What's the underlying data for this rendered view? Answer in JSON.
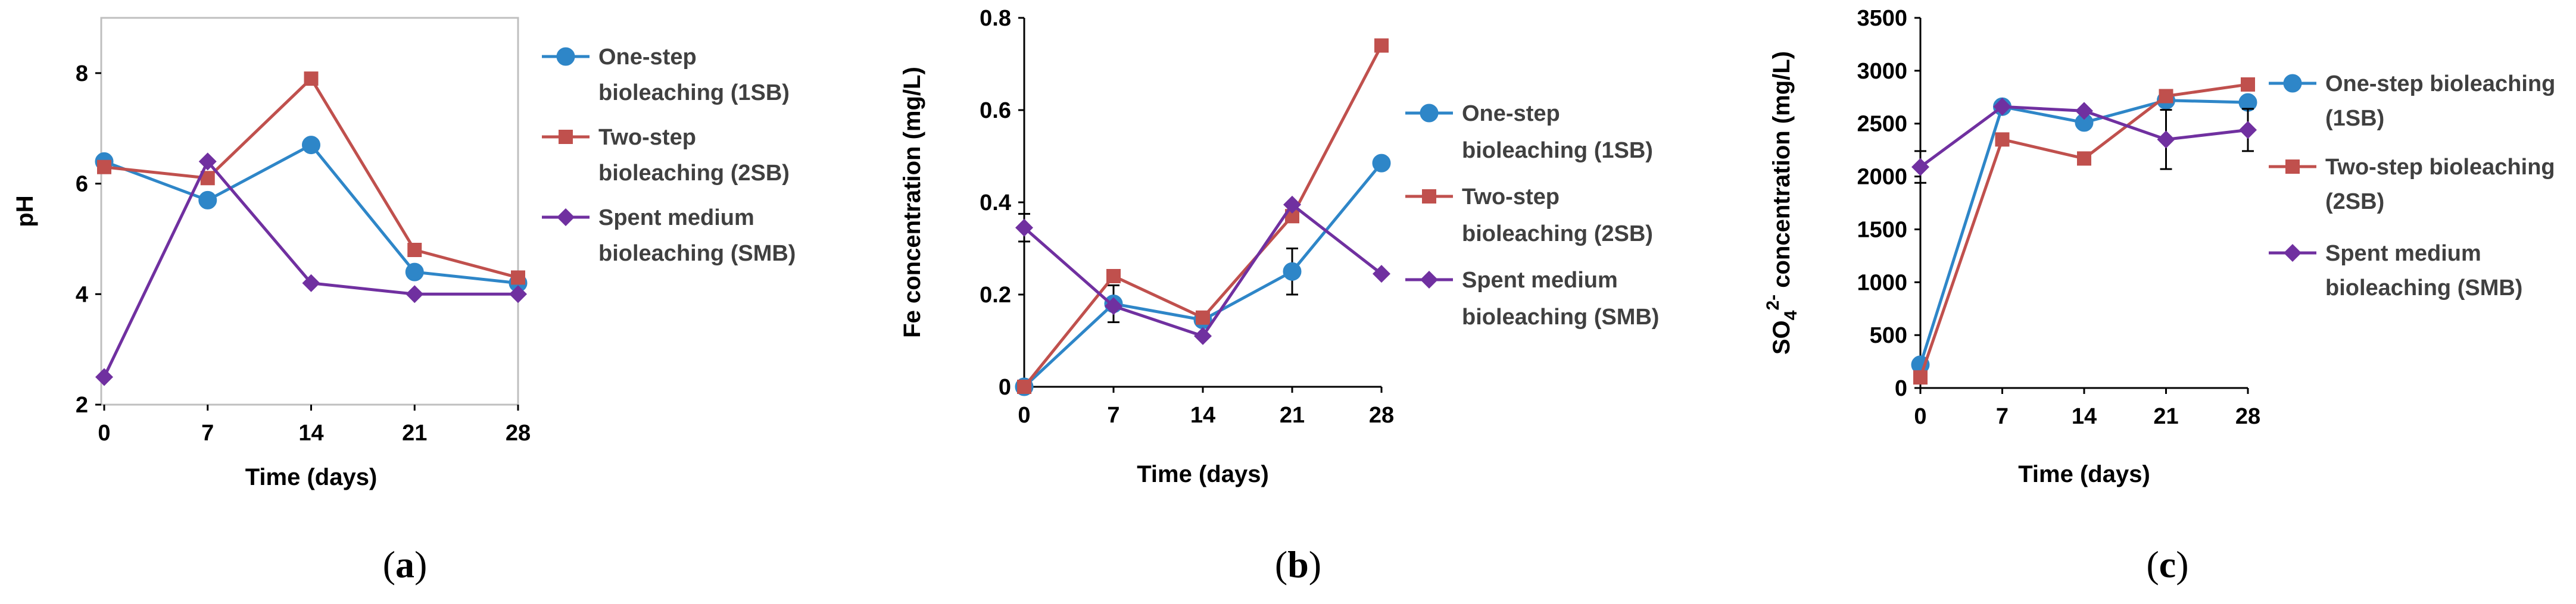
{
  "colors": {
    "1SB": "#2E86C8",
    "2SB": "#C0504D",
    "SMB": "#7030A0",
    "axis": "#000000",
    "frame": "#BFBFBF",
    "errorbar": "#000000"
  },
  "chart_data": [
    {
      "id": "a",
      "type": "line",
      "panel_label": "a",
      "xlabel": "Time (days)",
      "ylabel": "pH",
      "categories": [
        0,
        7,
        14,
        21,
        28
      ],
      "xticks": [
        "0",
        "7",
        "14",
        "21",
        "28"
      ],
      "ylim": [
        2,
        9
      ],
      "yticks": [
        2,
        4,
        6,
        8
      ],
      "ytick_labels": [
        "2",
        "4",
        "6",
        "8"
      ],
      "framed": true,
      "series": [
        {
          "key": "1SB",
          "name_line1": "One-step",
          "name_line2": "bioleaching (1SB)",
          "marker": "circle",
          "values": [
            6.4,
            5.7,
            6.7,
            4.4,
            4.2
          ]
        },
        {
          "key": "2SB",
          "name_line1": "Two-step",
          "name_line2": "bioleaching (2SB)",
          "marker": "square",
          "values": [
            6.3,
            6.1,
            7.9,
            4.8,
            4.3
          ]
        },
        {
          "key": "SMB",
          "name_line1": "Spent medium",
          "name_line2": "bioleaching (SMB)",
          "marker": "diamond",
          "values": [
            2.5,
            6.4,
            4.2,
            4.0,
            4.0
          ]
        }
      ]
    },
    {
      "id": "b",
      "type": "line",
      "panel_label": "b",
      "xlabel": "Time (days)",
      "ylabel": "Fe concentration (mg/L)",
      "categories": [
        0,
        7,
        14,
        21,
        28
      ],
      "xticks": [
        "0",
        "7",
        "14",
        "21",
        "28"
      ],
      "ylim": [
        0,
        0.8
      ],
      "yticks": [
        0,
        0.2,
        0.4,
        0.6,
        0.8
      ],
      "ytick_labels": [
        "0",
        "0.2",
        "0.4",
        "0.6",
        "0.8"
      ],
      "framed": false,
      "series": [
        {
          "key": "1SB",
          "name_line1": "One-step",
          "name_line2": "bioleaching (1SB)",
          "marker": "circle",
          "values": [
            0,
            0.18,
            0.145,
            0.25,
            0.485
          ],
          "errors": [
            0,
            0.04,
            0,
            0.05,
            0
          ]
        },
        {
          "key": "2SB",
          "name_line1": "Two-step",
          "name_line2": "bioleaching (2SB)",
          "marker": "square",
          "values": [
            0,
            0.24,
            0.15,
            0.37,
            0.74
          ],
          "errors": [
            0,
            0,
            0,
            0,
            0
          ]
        },
        {
          "key": "SMB",
          "name_line1": "Spent medium",
          "name_line2": "bioleaching (SMB)",
          "marker": "diamond",
          "values": [
            0.345,
            0.175,
            0.11,
            0.395,
            0.245
          ],
          "errors": [
            0.03,
            0,
            0,
            0,
            0
          ]
        }
      ]
    },
    {
      "id": "c",
      "type": "line",
      "panel_label": "c",
      "xlabel": "Time (days)",
      "ylabel_main": "SO",
      "ylabel_sub": "4",
      "ylabel_sup": "2-",
      "ylabel_rest": " concentration (mg/L)",
      "categories": [
        0,
        7,
        14,
        21,
        28
      ],
      "xticks": [
        "0",
        "7",
        "14",
        "21",
        "28"
      ],
      "ylim": [
        0,
        3500
      ],
      "yticks": [
        0,
        500,
        1000,
        1500,
        2000,
        2500,
        3000,
        3500
      ],
      "ytick_labels": [
        "0",
        "500",
        "1000",
        "1500",
        "2000",
        "2500",
        "3000",
        "3500"
      ],
      "framed": false,
      "series": [
        {
          "key": "1SB",
          "name_line1": "One-step bioleaching",
          "name_line2": "(1SB)",
          "marker": "circle",
          "values": [
            220,
            2660,
            2510,
            2720,
            2700
          ],
          "errors": [
            0,
            0,
            0,
            0,
            0
          ]
        },
        {
          "key": "2SB",
          "name_line1": "Two-step bioleaching",
          "name_line2": "(2SB)",
          "marker": "square",
          "values": [
            100,
            2350,
            2170,
            2760,
            2870
          ],
          "errors": [
            0,
            0,
            0,
            0,
            0
          ]
        },
        {
          "key": "SMB",
          "name_line1": "Spent medium",
          "name_line2": "bioleaching (SMB)",
          "marker": "diamond",
          "values": [
            2090,
            2660,
            2620,
            2350,
            2440
          ],
          "errors": [
            150,
            0,
            0,
            280,
            200
          ]
        }
      ]
    }
  ]
}
